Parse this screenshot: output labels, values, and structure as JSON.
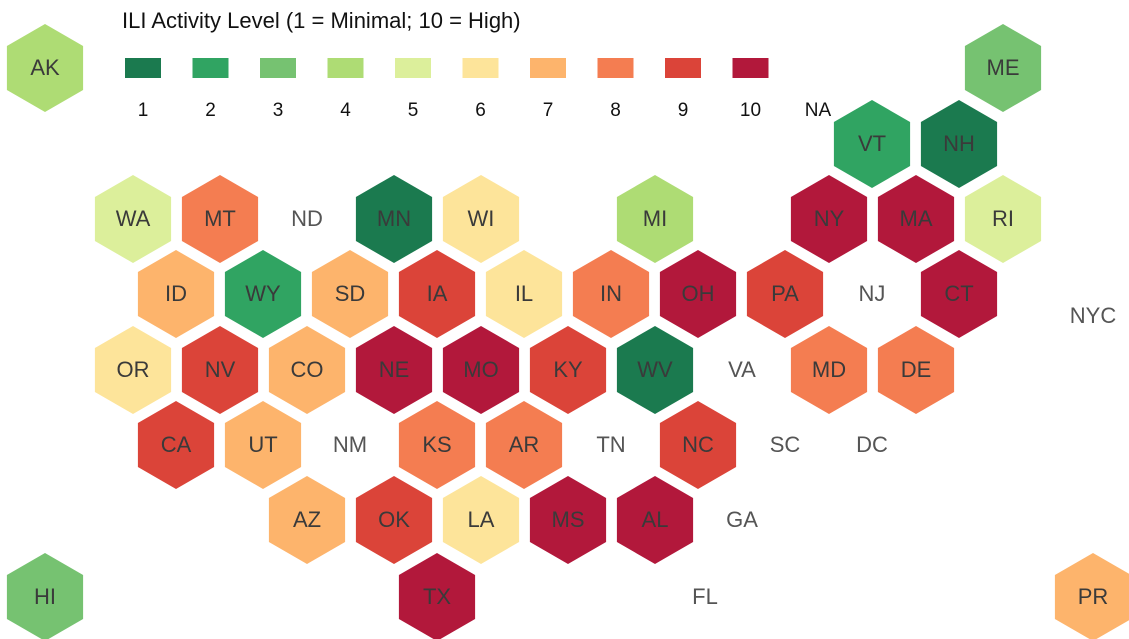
{
  "legend": {
    "title": "ILI Activity Level  (1 = Minimal; 10 = High)",
    "levels": [
      1,
      2,
      3,
      4,
      5,
      6,
      7,
      8,
      9,
      10
    ],
    "colors": [
      "#1b7a4f",
      "#30a462",
      "#76c271",
      "#aedc74",
      "#dcef9b",
      "#fde49a",
      "#fdb46c",
      "#f47d51",
      "#db4439",
      "#b2183b"
    ],
    "na_label": "NA"
  },
  "states": [
    {
      "label": "AK",
      "level": 4
    },
    {
      "label": "ME",
      "level": 3
    },
    {
      "label": "VT",
      "level": 2
    },
    {
      "label": "NH",
      "level": 1
    },
    {
      "label": "WA",
      "level": 5
    },
    {
      "label": "MT",
      "level": 8
    },
    {
      "label": "ND",
      "level": null
    },
    {
      "label": "MN",
      "level": 1
    },
    {
      "label": "WI",
      "level": 6
    },
    {
      "label": "MI",
      "level": 4
    },
    {
      "label": "NY",
      "level": 10
    },
    {
      "label": "MA",
      "level": 10
    },
    {
      "label": "RI",
      "level": 5
    },
    {
      "label": "ID",
      "level": 7
    },
    {
      "label": "WY",
      "level": 2
    },
    {
      "label": "SD",
      "level": 7
    },
    {
      "label": "IA",
      "level": 9
    },
    {
      "label": "IL",
      "level": 6
    },
    {
      "label": "IN",
      "level": 8
    },
    {
      "label": "OH",
      "level": 10
    },
    {
      "label": "PA",
      "level": 9
    },
    {
      "label": "NJ",
      "level": null
    },
    {
      "label": "CT",
      "level": 10
    },
    {
      "label": "NYC",
      "level": null
    },
    {
      "label": "OR",
      "level": 6
    },
    {
      "label": "NV",
      "level": 9
    },
    {
      "label": "CO",
      "level": 7
    },
    {
      "label": "NE",
      "level": 10
    },
    {
      "label": "MO",
      "level": 10
    },
    {
      "label": "KY",
      "level": 9
    },
    {
      "label": "WV",
      "level": 1
    },
    {
      "label": "VA",
      "level": null
    },
    {
      "label": "MD",
      "level": 8
    },
    {
      "label": "DE",
      "level": 8
    },
    {
      "label": "CA",
      "level": 9
    },
    {
      "label": "UT",
      "level": 7
    },
    {
      "label": "NM",
      "level": null
    },
    {
      "label": "KS",
      "level": 8
    },
    {
      "label": "AR",
      "level": 8
    },
    {
      "label": "TN",
      "level": null
    },
    {
      "label": "NC",
      "level": 9
    },
    {
      "label": "SC",
      "level": null
    },
    {
      "label": "DC",
      "level": null
    },
    {
      "label": "AZ",
      "level": 7
    },
    {
      "label": "OK",
      "level": 9
    },
    {
      "label": "LA",
      "level": 6
    },
    {
      "label": "MS",
      "level": 10
    },
    {
      "label": "AL",
      "level": 10
    },
    {
      "label": "GA",
      "level": null
    },
    {
      "label": "TX",
      "level": 10
    },
    {
      "label": "FL",
      "level": null
    },
    {
      "label": "HI",
      "level": 3
    },
    {
      "label": "PR",
      "level": 7
    }
  ]
}
